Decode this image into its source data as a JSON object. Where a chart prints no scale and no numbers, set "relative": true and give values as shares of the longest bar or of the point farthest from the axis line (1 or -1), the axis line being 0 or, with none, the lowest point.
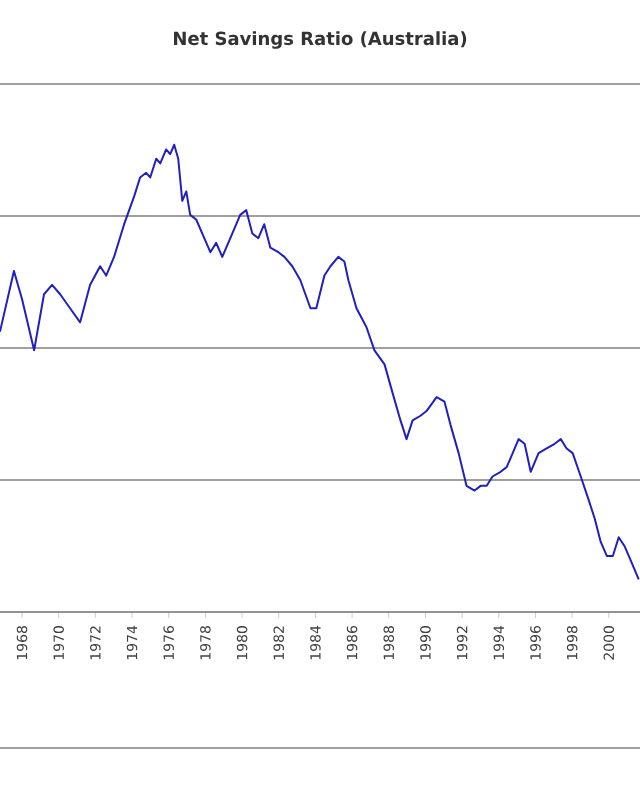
{
  "chart_data": {
    "type": "line",
    "title": "Net Savings Ratio (Australia)",
    "relative": true,
    "grid": "y",
    "marker": "none",
    "line_style": "solid",
    "xlim": [
      1966.8,
      2001.7
    ],
    "xticks": [
      1968,
      1970,
      1972,
      1974,
      1976,
      1978,
      1980,
      1982,
      1984,
      1986,
      1988,
      1990,
      1992,
      1994,
      1996,
      1998,
      2000
    ],
    "series": [
      {
        "color": "#2020c0",
        "x": [
          1966.8,
          1967.56,
          1968.0,
          1968.66,
          1969.2,
          1969.64,
          1970.08,
          1970.62,
          1971.17,
          1971.71,
          1972.26,
          1972.59,
          1973.02,
          1973.57,
          1974.12,
          1974.44,
          1974.77,
          1974.99,
          1975.32,
          1975.54,
          1975.86,
          1976.08,
          1976.3,
          1976.52,
          1976.74,
          1976.96,
          1977.17,
          1977.5,
          1977.94,
          1978.27,
          1978.59,
          1978.92,
          1979.36,
          1979.9,
          1980.23,
          1980.56,
          1980.89,
          1981.21,
          1981.54,
          1981.98,
          1982.31,
          1982.74,
          1983.18,
          1983.73,
          1984.05,
          1984.49,
          1984.82,
          1985.25,
          1985.58,
          1985.8,
          1986.24,
          1986.78,
          1987.22,
          1987.77,
          1988.2,
          1988.64,
          1988.97,
          1989.3,
          1989.73,
          1990.06,
          1990.61,
          1991.04,
          1991.37,
          1991.81,
          1992.24,
          1992.68,
          1993.01,
          1993.34,
          1993.66,
          1994.1,
          1994.43,
          1994.65,
          1995.08,
          1995.41,
          1995.74,
          1996.17,
          1996.61,
          1997.05,
          1997.38,
          1997.7,
          1998.03,
          1998.47,
          1998.9,
          1999.23,
          1999.56,
          1999.89,
          2000.22,
          2000.54,
          2000.87,
          2001.2,
          2001.63
        ],
        "values": [
          0.6,
          0.73,
          0.67,
          0.56,
          0.68,
          0.7,
          0.68,
          0.65,
          0.62,
          0.7,
          0.74,
          0.72,
          0.76,
          0.83,
          0.89,
          0.93,
          0.94,
          0.93,
          0.97,
          0.96,
          0.99,
          0.98,
          1.0,
          0.97,
          0.88,
          0.9,
          0.85,
          0.84,
          0.8,
          0.77,
          0.79,
          0.76,
          0.8,
          0.85,
          0.86,
          0.81,
          0.8,
          0.83,
          0.78,
          0.77,
          0.76,
          0.74,
          0.71,
          0.65,
          0.65,
          0.72,
          0.74,
          0.76,
          0.75,
          0.71,
          0.65,
          0.61,
          0.56,
          0.53,
          0.47,
          0.41,
          0.37,
          0.41,
          0.42,
          0.43,
          0.46,
          0.45,
          0.4,
          0.34,
          0.27,
          0.26,
          0.27,
          0.27,
          0.29,
          0.3,
          0.31,
          0.33,
          0.37,
          0.36,
          0.3,
          0.34,
          0.35,
          0.36,
          0.37,
          0.35,
          0.34,
          0.29,
          0.24,
          0.2,
          0.15,
          0.12,
          0.12,
          0.16,
          0.14,
          0.11,
          0.07
        ]
      }
    ]
  }
}
